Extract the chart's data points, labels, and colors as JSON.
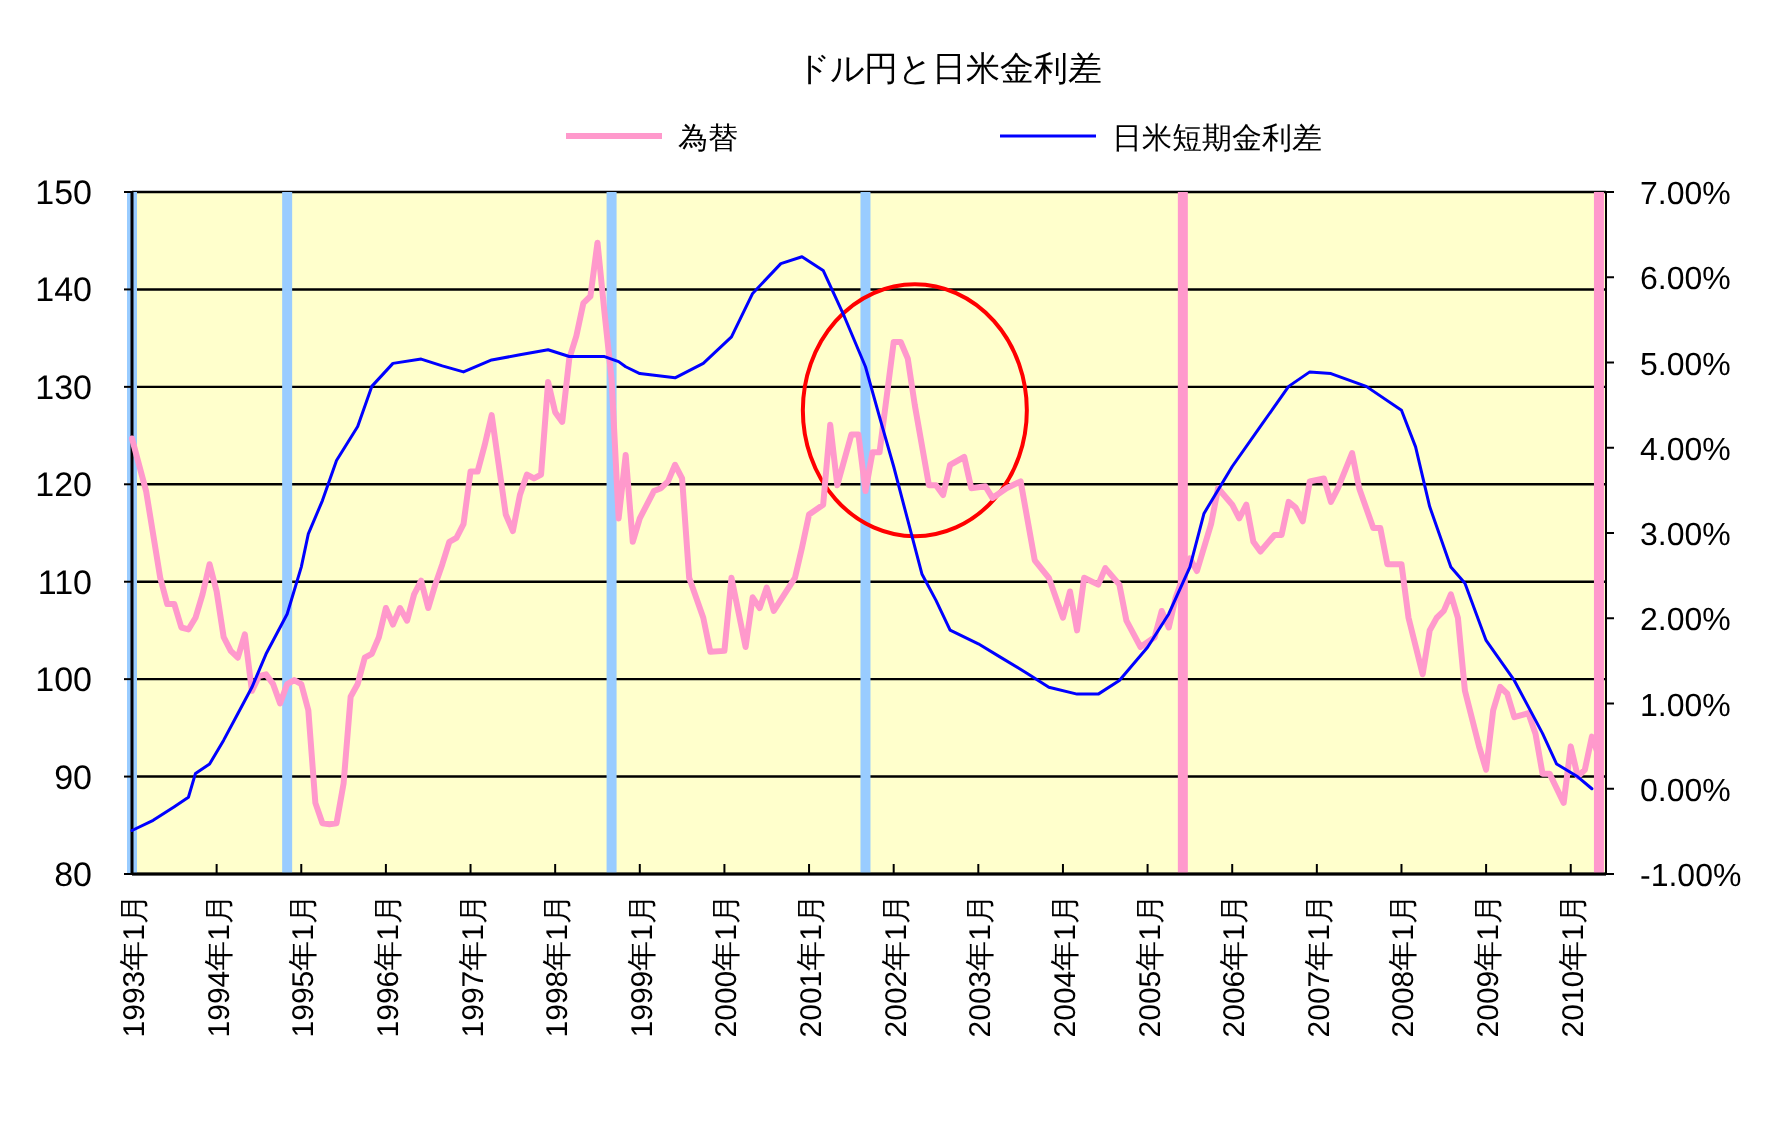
{
  "chart_data": {
    "type": "line",
    "title": "ドル円と日米金利差",
    "legend": "top",
    "grid": "y",
    "xlim": [
      "1993-01",
      "2010-06"
    ],
    "xticks": [
      {
        "value": "1993-01",
        "label": "1993年1月"
      },
      {
        "value": "1994-01",
        "label": "1994年1月"
      },
      {
        "value": "1995-01",
        "label": "1995年1月"
      },
      {
        "value": "1996-01",
        "label": "1996年1月"
      },
      {
        "value": "1997-01",
        "label": "1997年1月"
      },
      {
        "value": "1998-01",
        "label": "1998年1月"
      },
      {
        "value": "1999-01",
        "label": "1999年1月"
      },
      {
        "value": "2000-01",
        "label": "2000年1月"
      },
      {
        "value": "2001-01",
        "label": "2001年1月"
      },
      {
        "value": "2002-01",
        "label": "2002年1月"
      },
      {
        "value": "2003-01",
        "label": "2003年1月"
      },
      {
        "value": "2004-01",
        "label": "2004年1月"
      },
      {
        "value": "2005-01",
        "label": "2005年1月"
      },
      {
        "value": "2006-01",
        "label": "2006年1月"
      },
      {
        "value": "2007-01",
        "label": "2007年1月"
      },
      {
        "value": "2008-01",
        "label": "2008年1月"
      },
      {
        "value": "2009-01",
        "label": "2009年1月"
      },
      {
        "value": "2010-01",
        "label": "2010年1月"
      }
    ],
    "ylim": [
      80,
      150
    ],
    "yticks": [
      80,
      90,
      100,
      110,
      120,
      130,
      140,
      150
    ],
    "y2lim": [
      -1,
      7
    ],
    "y2ticks": [
      {
        "value": -1,
        "label": "-1.00%"
      },
      {
        "value": 0,
        "label": "0.00%"
      },
      {
        "value": 1,
        "label": "1.00%"
      },
      {
        "value": 2,
        "label": "2.00%"
      },
      {
        "value": 3,
        "label": "3.00%"
      },
      {
        "value": 4,
        "label": "4.00%"
      },
      {
        "value": 5,
        "label": "5.00%"
      },
      {
        "value": 6,
        "label": "6.00%"
      },
      {
        "value": 7,
        "label": "7.00%"
      }
    ],
    "ref_lines": [
      {
        "axis": "x",
        "value": "1993-01",
        "color": "#99ccff"
      },
      {
        "axis": "x",
        "value": "1994-11",
        "color": "#99ccff"
      },
      {
        "axis": "x",
        "value": "1998-09",
        "color": "#99ccff"
      },
      {
        "axis": "x",
        "value": "2001-09",
        "color": "#99ccff"
      },
      {
        "axis": "x",
        "value": "2005-06",
        "color": "#ff99cc"
      },
      {
        "axis": "x",
        "value": "2010-05",
        "color": "#ff99cc"
      }
    ],
    "series": [
      {
        "name": "為替",
        "color": "#ff99cc",
        "x": [
          "1993-01",
          "1993-03",
          "1993-05",
          "1993-06",
          "1993-07",
          "1993-08",
          "1993-09",
          "1993-10",
          "1993-11",
          "1993-12",
          "1994-01",
          "1994-02",
          "1994-03",
          "1994-04",
          "1994-05",
          "1994-06",
          "1994-07",
          "1994-08",
          "1994-09",
          "1994-10",
          "1994-11",
          "1994-12",
          "1995-01",
          "1995-02",
          "1995-03",
          "1995-04",
          "1995-05",
          "1995-06",
          "1995-07",
          "1995-08",
          "1995-09",
          "1995-10",
          "1995-11",
          "1995-12",
          "1996-01",
          "1996-02",
          "1996-03",
          "1996-04",
          "1996-05",
          "1996-06",
          "1996-07",
          "1996-08",
          "1996-09",
          "1996-10",
          "1996-11",
          "1996-12",
          "1997-01",
          "1997-02",
          "1997-03",
          "1997-04",
          "1997-05",
          "1997-06",
          "1997-07",
          "1997-08",
          "1997-09",
          "1997-10",
          "1997-11",
          "1997-12",
          "1998-01",
          "1998-02",
          "1998-03",
          "1998-04",
          "1998-05",
          "1998-06",
          "1998-07",
          "1998-08",
          "1998-09",
          "1998-10",
          "1998-11",
          "1998-12",
          "1999-01",
          "1999-03",
          "1999-04",
          "1999-05",
          "1999-06",
          "1999-07",
          "1999-08",
          "1999-10",
          "1999-11",
          "2000-01",
          "2000-02",
          "2000-04",
          "2000-05",
          "2000-06",
          "2000-07",
          "2000-08",
          "2000-11",
          "2000-12",
          "2001-01",
          "2001-03",
          "2001-04",
          "2001-05",
          "2001-07",
          "2001-08",
          "2001-09",
          "2001-10",
          "2001-11",
          "2002-01",
          "2002-02",
          "2002-03",
          "2002-04",
          "2002-06",
          "2002-07",
          "2002-08",
          "2002-09",
          "2002-11",
          "2002-12",
          "2003-02",
          "2003-03",
          "2003-05",
          "2003-07",
          "2003-09",
          "2003-11",
          "2004-01",
          "2004-02",
          "2004-03",
          "2004-04",
          "2004-06",
          "2004-07",
          "2004-09",
          "2004-10",
          "2004-12",
          "2005-02",
          "2005-03",
          "2005-04",
          "2005-05",
          "2005-07",
          "2005-08",
          "2005-10",
          "2005-11",
          "2006-01",
          "2006-02",
          "2006-03",
          "2006-04",
          "2006-05",
          "2006-07",
          "2006-08",
          "2006-09",
          "2006-10",
          "2006-11",
          "2006-12",
          "2007-02",
          "2007-03",
          "2007-04",
          "2007-06",
          "2007-07",
          "2007-09",
          "2007-10",
          "2007-11",
          "2008-01",
          "2008-02",
          "2008-04",
          "2008-05",
          "2008-06",
          "2008-07",
          "2008-08",
          "2008-09",
          "2008-10",
          "2008-12",
          "2009-01",
          "2009-02",
          "2009-03",
          "2009-04",
          "2009-05",
          "2009-07",
          "2009-08",
          "2009-09",
          "2009-10",
          "2009-12",
          "2010-01",
          "2010-02",
          "2010-03",
          "2010-04",
          "2010-05"
        ],
        "values": [
          124.7,
          119.3,
          110.4,
          107.7,
          107.7,
          105.3,
          105.1,
          106.3,
          108.7,
          111.8,
          109.0,
          104.3,
          102.9,
          102.2,
          104.6,
          98.8,
          100.3,
          100.5,
          99.5,
          97.5,
          99.5,
          99.9,
          99.5,
          96.8,
          87.3,
          85.2,
          85.1,
          85.2,
          89.3,
          98.2,
          99.5,
          102.2,
          102.6,
          104.3,
          107.3,
          105.6,
          107.3,
          106.0,
          108.7,
          110.1,
          107.3,
          109.7,
          111.8,
          114.1,
          114.5,
          115.9,
          121.3,
          121.3,
          124.0,
          127.1,
          122.0,
          116.9,
          115.2,
          118.9,
          121.0,
          120.6,
          121.0,
          130.5,
          127.4,
          126.4,
          132.9,
          135.2,
          138.6,
          139.3,
          144.8,
          137.6,
          130.8,
          116.5,
          123.0,
          114.1,
          116.5,
          119.3,
          119.6,
          120.3,
          122.0,
          120.6,
          110.4,
          106.3,
          102.8,
          102.9,
          110.4,
          103.3,
          108.4,
          107.3,
          109.4,
          107.0,
          110.4,
          113.5,
          116.9,
          117.9,
          126.1,
          119.9,
          125.1,
          125.1,
          119.3,
          123.3,
          123.3,
          134.6,
          134.6,
          132.9,
          128.1,
          119.9,
          119.9,
          118.9,
          122.0,
          122.8,
          119.6,
          119.8,
          118.6,
          119.6,
          120.3,
          112.2,
          110.4,
          106.3,
          109.0,
          105.0,
          110.4,
          109.7,
          111.4,
          109.7,
          106.0,
          103.3,
          104.3,
          107.0,
          105.3,
          108.4,
          112.4,
          111.1,
          115.9,
          119.6,
          117.9,
          116.5,
          117.9,
          114.1,
          113.1,
          114.8,
          114.8,
          118.2,
          117.6,
          116.2,
          120.3,
          120.6,
          118.2,
          119.6,
          123.2,
          119.6,
          115.5,
          115.5,
          111.8,
          111.8,
          106.3,
          100.5,
          105.0,
          106.3,
          107.0,
          108.7,
          106.3,
          98.8,
          93.1,
          90.7,
          96.8,
          99.2,
          98.5,
          96.1,
          96.5,
          94.4,
          90.3,
          90.3,
          87.3,
          93.1,
          90.0,
          90.7,
          94.1,
          92.0
        ]
      },
      {
        "name": "日米短期金利差",
        "color": "#0000ff",
        "axis": "y2",
        "x": [
          "1993-01",
          "1993-04",
          "1993-07",
          "1993-09",
          "1993-10",
          "1993-12",
          "1994-02",
          "1994-04",
          "1994-06",
          "1994-08",
          "1994-11",
          "1995-01",
          "1995-02",
          "1995-04",
          "1995-06",
          "1995-09",
          "1995-11",
          "1996-02",
          "1996-06",
          "1996-09",
          "1996-12",
          "1997-04",
          "1997-08",
          "1997-12",
          "1998-03",
          "1998-08",
          "1998-10",
          "1998-11",
          "1999-01",
          "1999-06",
          "1999-10",
          "2000-02",
          "2000-05",
          "2000-09",
          "2000-12",
          "2001-03",
          "2001-06",
          "2001-09",
          "2001-11",
          "2002-01",
          "2002-03",
          "2002-05",
          "2002-07",
          "2002-09",
          "2003-01",
          "2003-04",
          "2003-08",
          "2003-11",
          "2004-03",
          "2004-06",
          "2004-09",
          "2005-01",
          "2005-04",
          "2005-07",
          "2005-09",
          "2006-01",
          "2006-05",
          "2006-09",
          "2006-12",
          "2007-03",
          "2007-08",
          "2008-01",
          "2008-03",
          "2008-05",
          "2008-08",
          "2008-10",
          "2009-01",
          "2009-05",
          "2009-09",
          "2009-11",
          "2010-02",
          "2010-04"
        ],
        "values": [
          -0.49,
          -0.37,
          -0.21,
          -0.1,
          0.18,
          0.29,
          0.57,
          0.88,
          1.19,
          1.58,
          2.05,
          2.6,
          2.99,
          3.38,
          3.85,
          4.25,
          4.72,
          4.99,
          5.04,
          4.96,
          4.89,
          5.03,
          5.09,
          5.15,
          5.07,
          5.07,
          5.01,
          4.95,
          4.87,
          4.82,
          4.99,
          5.3,
          5.81,
          6.16,
          6.24,
          6.08,
          5.54,
          4.95,
          4.36,
          3.78,
          3.15,
          2.52,
          2.21,
          1.86,
          1.7,
          1.55,
          1.35,
          1.19,
          1.11,
          1.11,
          1.27,
          1.66,
          2.05,
          2.6,
          3.23,
          3.78,
          4.25,
          4.72,
          4.89,
          4.87,
          4.72,
          4.44,
          4.01,
          3.31,
          2.6,
          2.41,
          1.74,
          1.27,
          0.65,
          0.29,
          0.14,
          0.0
        ]
      }
    ]
  }
}
